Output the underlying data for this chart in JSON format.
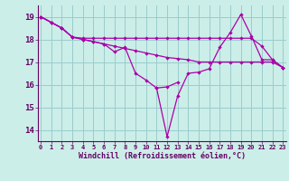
{
  "xlabel": "Windchill (Refroidissement éolien,°C)",
  "bg_color": "#cceee8",
  "line_color": "#aa00aa",
  "grid_color": "#99cccc",
  "ylim": [
    13.5,
    19.5
  ],
  "yticks": [
    14,
    15,
    16,
    17,
    18,
    19
  ],
  "xlim": [
    -0.3,
    23.3
  ],
  "series1_x": [
    0,
    1,
    2,
    3,
    4,
    5,
    6,
    7,
    8,
    9,
    10,
    11,
    12,
    13,
    14,
    15,
    16,
    17,
    18,
    19,
    20,
    21,
    22,
    23
  ],
  "series1_y": [
    19.0,
    18.75,
    18.5,
    18.1,
    18.05,
    18.05,
    18.05,
    18.05,
    18.05,
    18.05,
    18.05,
    18.05,
    18.05,
    18.05,
    18.05,
    18.05,
    18.05,
    18.05,
    18.05,
    18.05,
    18.05,
    17.7,
    17.1,
    16.75
  ],
  "series2_x": [
    0,
    1,
    2,
    3,
    4,
    5,
    6,
    7,
    8,
    9,
    10,
    11,
    12,
    13,
    14,
    15,
    16,
    17,
    18,
    19,
    20,
    21,
    22,
    23
  ],
  "series2_y": [
    19.0,
    18.75,
    18.5,
    18.1,
    18.0,
    17.9,
    17.8,
    17.7,
    17.6,
    17.5,
    17.4,
    17.3,
    17.2,
    17.15,
    17.1,
    17.0,
    17.0,
    17.0,
    17.0,
    17.0,
    17.0,
    17.0,
    17.0,
    16.75
  ],
  "series3_x": [
    0,
    1,
    2,
    3,
    4,
    5,
    6,
    7,
    8,
    9,
    10,
    11,
    12,
    13,
    14,
    15,
    16,
    17,
    18,
    19,
    20,
    21,
    22,
    23
  ],
  "series3_y": [
    19.0,
    18.75,
    18.5,
    18.1,
    18.0,
    17.9,
    17.8,
    17.45,
    17.65,
    16.5,
    16.2,
    15.85,
    15.9,
    16.1,
    null,
    null,
    null,
    null,
    null,
    null,
    null,
    null,
    null,
    null
  ],
  "series4_x": [
    11,
    12,
    13,
    14,
    15,
    16,
    17,
    18,
    19,
    20,
    21,
    22,
    23
  ],
  "series4_y": [
    15.85,
    13.7,
    15.5,
    16.5,
    16.55,
    16.7,
    17.65,
    18.3,
    19.1,
    18.15,
    17.1,
    17.1,
    16.75
  ]
}
